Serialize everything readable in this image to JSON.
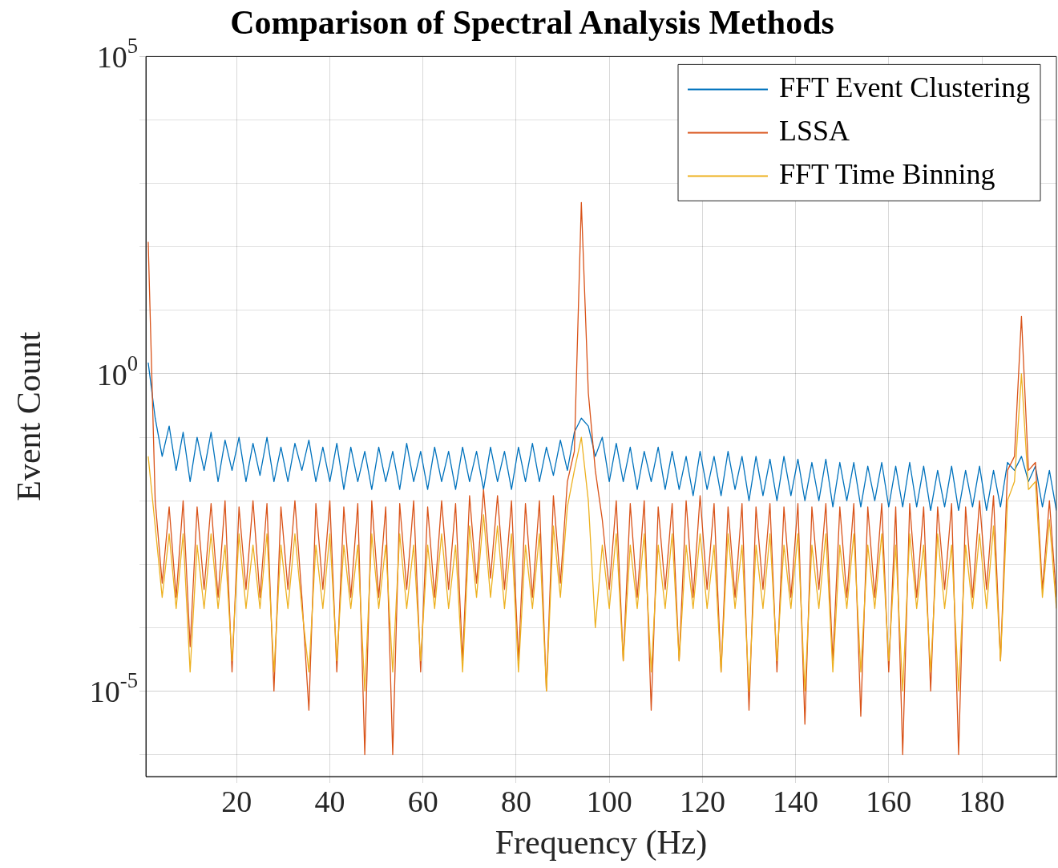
{
  "chart_data": {
    "type": "line",
    "title": "Comparison of Spectral Analysis Methods",
    "xlabel": "Frequency (Hz)",
    "ylabel": "Event Count",
    "log": "y",
    "grid": true,
    "legend": "top right",
    "marker": "none",
    "line_style": "solid",
    "xlim": [
      0.5,
      196
    ],
    "xticks": [
      20,
      40,
      60,
      80,
      100,
      120,
      140,
      160,
      180
    ],
    "ylim": [
      4.5e-07,
      100000
    ],
    "yticks": [
      {
        "value": 1e-06,
        "label": null
      },
      {
        "value": 1e-05,
        "label": "10$^{-5}$"
      },
      {
        "value": 0.0001,
        "label": null
      },
      {
        "value": 0.001,
        "label": null
      },
      {
        "value": 0.01,
        "label": null
      },
      {
        "value": 0.1,
        "label": null
      },
      {
        "value": 1,
        "label": "10$^{0}$"
      },
      {
        "value": 10,
        "label": null
      },
      {
        "value": 100,
        "label": null
      },
      {
        "value": 1000,
        "label": null
      },
      {
        "value": 10000,
        "label": null
      },
      {
        "value": 100000,
        "label": "10$^{5}$"
      }
    ],
    "x": [
      1,
      2.5,
      4,
      5.5,
      7,
      8.5,
      10,
      11.5,
      13,
      14.5,
      16,
      17.5,
      19,
      20.5,
      22,
      23.5,
      25,
      26.5,
      28,
      29.5,
      31,
      32.5,
      34,
      35.5,
      37,
      38.5,
      40,
      41.5,
      43,
      44.5,
      46,
      47.5,
      49,
      50.5,
      52,
      53.5,
      55,
      56.5,
      58,
      59.5,
      61,
      62.5,
      64,
      65.5,
      67,
      68.5,
      70,
      71.5,
      73,
      74.5,
      76,
      77.5,
      79,
      80.5,
      82,
      83.5,
      85,
      86.5,
      88,
      89.5,
      91,
      92.5,
      94,
      95.5,
      97,
      98.5,
      100,
      101.5,
      103,
      104.5,
      106,
      107.5,
      109,
      110.5,
      112,
      113.5,
      115,
      116.5,
      118,
      119.5,
      121,
      122.5,
      124,
      125.5,
      127,
      128.5,
      130,
      131.5,
      133,
      134.5,
      136,
      137.5,
      139,
      140.5,
      142,
      143.5,
      145,
      146.5,
      148,
      149.5,
      151,
      152.5,
      154,
      155.5,
      157,
      158.5,
      160,
      161.5,
      163,
      164.5,
      166,
      167.5,
      169,
      170.5,
      172,
      173.5,
      175,
      176.5,
      178,
      179.5,
      181,
      182.5,
      184,
      185.5,
      187,
      188.5,
      190,
      191.5,
      193,
      194.5,
      196
    ],
    "series": [
      {
        "name": "FFT Event Clustering",
        "color": "#0072bd",
        "values": [
          1.5,
          0.2,
          0.05,
          0.15,
          0.03,
          0.12,
          0.02,
          0.1,
          0.03,
          0.12,
          0.02,
          0.09,
          0.03,
          0.1,
          0.02,
          0.08,
          0.025,
          0.1,
          0.02,
          0.07,
          0.02,
          0.08,
          0.03,
          0.09,
          0.02,
          0.07,
          0.02,
          0.08,
          0.015,
          0.07,
          0.02,
          0.06,
          0.015,
          0.07,
          0.02,
          0.06,
          0.015,
          0.08,
          0.02,
          0.06,
          0.015,
          0.07,
          0.02,
          0.06,
          0.015,
          0.07,
          0.02,
          0.06,
          0.015,
          0.07,
          0.02,
          0.06,
          0.015,
          0.07,
          0.02,
          0.08,
          0.02,
          0.07,
          0.025,
          0.09,
          0.03,
          0.12,
          0.2,
          0.15,
          0.05,
          0.1,
          0.02,
          0.08,
          0.02,
          0.07,
          0.015,
          0.06,
          0.02,
          0.07,
          0.015,
          0.06,
          0.015,
          0.05,
          0.012,
          0.06,
          0.015,
          0.05,
          0.012,
          0.06,
          0.015,
          0.05,
          0.01,
          0.05,
          0.012,
          0.045,
          0.01,
          0.05,
          0.012,
          0.045,
          0.01,
          0.04,
          0.01,
          0.045,
          0.008,
          0.04,
          0.01,
          0.04,
          0.008,
          0.035,
          0.01,
          0.04,
          0.008,
          0.035,
          0.008,
          0.04,
          0.008,
          0.035,
          0.007,
          0.03,
          0.008,
          0.035,
          0.007,
          0.03,
          0.008,
          0.035,
          0.007,
          0.03,
          0.008,
          0.04,
          0.03,
          0.05,
          0.02,
          0.035,
          0.008,
          0.03,
          0.007
        ]
      },
      {
        "name": "LSSA",
        "color": "#d95319",
        "values": [
          120,
          0.01,
          0.0005,
          0.008,
          0.0003,
          0.01,
          5e-05,
          0.008,
          0.0004,
          0.009,
          0.0003,
          0.01,
          2e-05,
          0.008,
          0.0004,
          0.01,
          0.0003,
          0.009,
          1e-05,
          0.008,
          0.0004,
          0.01,
          0.0003,
          5e-06,
          0.009,
          0.0004,
          0.01,
          2e-05,
          0.008,
          0.0003,
          0.009,
          1e-06,
          0.01,
          0.0003,
          0.008,
          1e-06,
          0.009,
          0.0004,
          0.01,
          2e-05,
          0.008,
          0.0003,
          0.01,
          0.0004,
          0.009,
          3e-05,
          0.012,
          0.0005,
          0.015,
          0.0006,
          0.012,
          0.0004,
          0.01,
          3e-05,
          0.009,
          0.0003,
          0.01,
          1e-05,
          0.012,
          0.0005,
          0.02,
          0.06,
          500,
          0.5,
          0.03,
          0.005,
          0.0004,
          0.01,
          3e-05,
          0.009,
          0.0003,
          0.01,
          5e-06,
          0.008,
          0.0004,
          0.009,
          3e-05,
          0.01,
          0.0003,
          0.012,
          0.0004,
          0.009,
          2e-05,
          0.008,
          0.0003,
          0.009,
          5e-06,
          0.008,
          0.0004,
          0.009,
          2e-05,
          0.008,
          0.0003,
          0.009,
          3e-06,
          0.008,
          0.0004,
          0.009,
          3e-05,
          0.008,
          0.0003,
          0.009,
          4e-06,
          0.008,
          0.0003,
          0.009,
          2e-05,
          0.008,
          1e-06,
          0.009,
          0.0003,
          0.008,
          1e-05,
          0.008,
          0.0004,
          0.009,
          1e-06,
          0.008,
          0.0003,
          0.01,
          0.0004,
          0.012,
          3e-05,
          0.03,
          0.05,
          8,
          0.03,
          0.04,
          0.0004,
          0.01,
          0.0003
        ]
      },
      {
        "name": "FFT Time Binning",
        "color": "#edb120",
        "values": [
          0.05,
          0.004,
          0.0003,
          0.003,
          0.0002,
          0.003,
          2e-05,
          0.002,
          0.0002,
          0.003,
          0.0002,
          0.002,
          3e-05,
          0.003,
          0.0002,
          0.002,
          0.0002,
          0.003,
          2e-05,
          0.002,
          0.0002,
          0.003,
          0.0002,
          2e-05,
          0.002,
          0.0002,
          0.003,
          3e-05,
          0.002,
          0.0002,
          0.002,
          1e-05,
          0.003,
          0.0002,
          0.002,
          2e-05,
          0.003,
          0.0002,
          0.002,
          3e-05,
          0.002,
          0.0002,
          0.003,
          0.0002,
          0.002,
          2e-05,
          0.004,
          0.0003,
          0.006,
          0.0003,
          0.004,
          0.0002,
          0.003,
          2e-05,
          0.002,
          0.0002,
          0.003,
          1e-05,
          0.004,
          0.0003,
          0.008,
          0.03,
          0.1,
          0.01,
          0.0001,
          0.002,
          0.0002,
          0.003,
          3e-05,
          0.002,
          0.0002,
          0.003,
          2e-05,
          0.002,
          0.0002,
          0.003,
          3e-05,
          0.002,
          0.0002,
          0.003,
          0.0002,
          0.002,
          2e-05,
          0.003,
          0.0002,
          0.002,
          1e-05,
          0.002,
          0.0002,
          0.003,
          3e-05,
          0.002,
          0.0002,
          0.003,
          1e-05,
          0.002,
          0.0002,
          0.003,
          2e-05,
          0.002,
          0.0002,
          0.003,
          2e-05,
          0.002,
          0.0002,
          0.003,
          3e-05,
          0.002,
          1e-05,
          0.003,
          0.0002,
          0.002,
          2e-05,
          0.003,
          0.0002,
          0.002,
          1e-05,
          0.002,
          0.0002,
          0.003,
          0.0002,
          0.004,
          3e-05,
          0.01,
          0.02,
          1,
          0.015,
          0.02,
          0.0003,
          0.005,
          0.0002
        ]
      }
    ]
  }
}
